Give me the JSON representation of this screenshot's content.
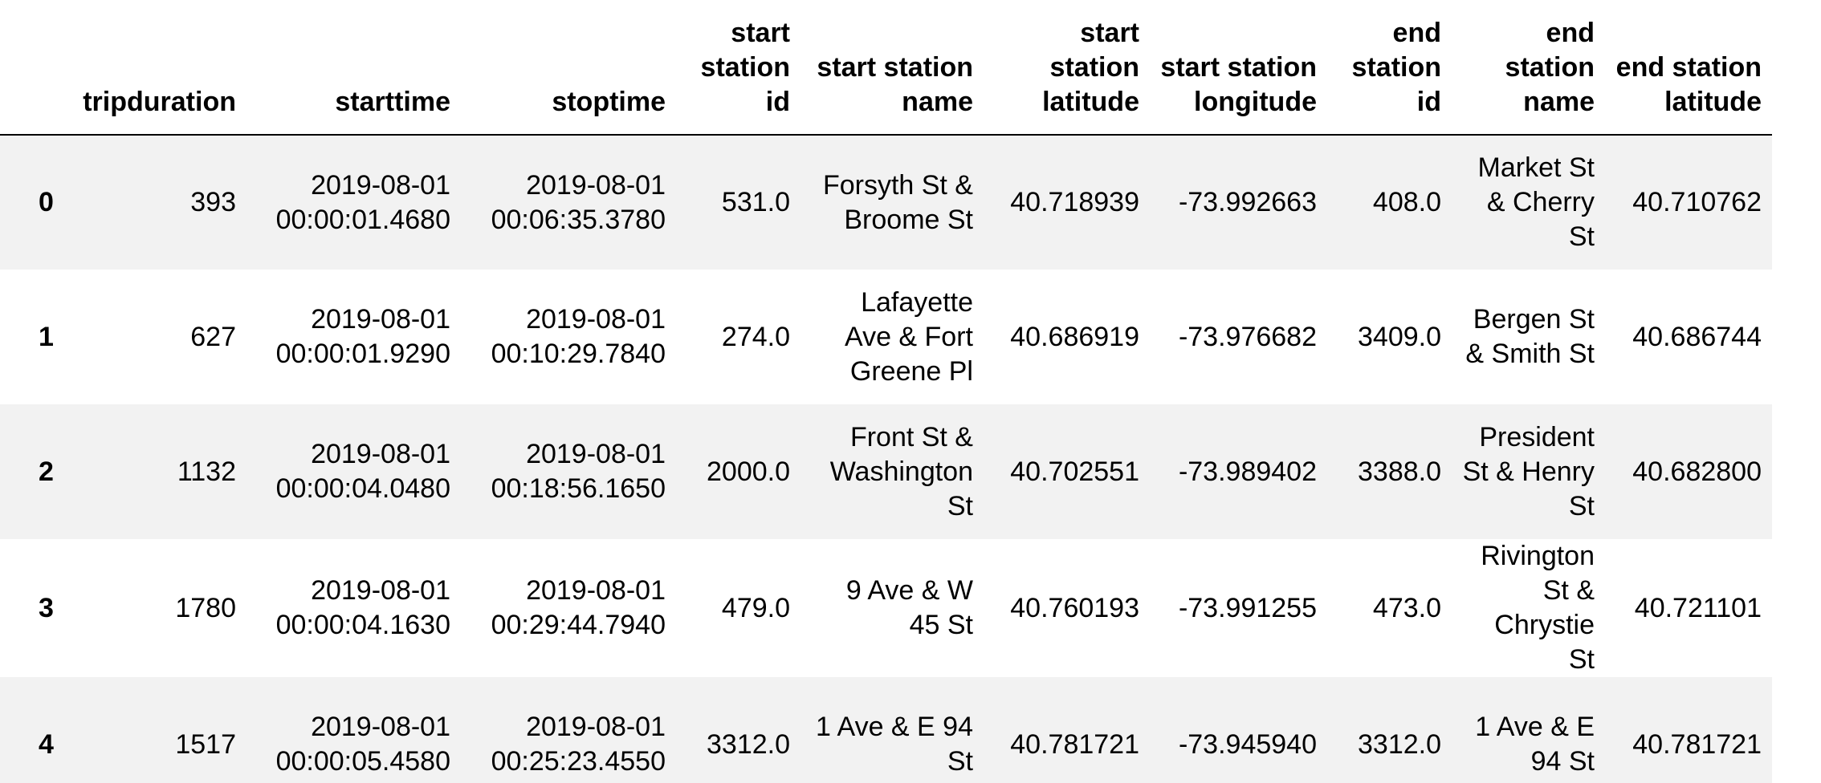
{
  "table": {
    "columns": [
      "tripduration",
      "starttime",
      "stoptime",
      "start station id",
      "start station name",
      "start station latitude",
      "start station longitude",
      "end station id",
      "end station name",
      "end station latitude"
    ],
    "rows": [
      {
        "index": "0",
        "cells": [
          "393",
          "2019-08-01 00:00:01.4680",
          "2019-08-01 00:06:35.3780",
          "531.0",
          "Forsyth St & Broome St",
          "40.718939",
          "-73.992663",
          "408.0",
          "Market St & Cherry St",
          "40.710762"
        ]
      },
      {
        "index": "1",
        "cells": [
          "627",
          "2019-08-01 00:00:01.9290",
          "2019-08-01 00:10:29.7840",
          "274.0",
          "Lafayette Ave & Fort Greene Pl",
          "40.686919",
          "-73.976682",
          "3409.0",
          "Bergen St & Smith St",
          "40.686744"
        ]
      },
      {
        "index": "2",
        "cells": [
          "1132",
          "2019-08-01 00:00:04.0480",
          "2019-08-01 00:18:56.1650",
          "2000.0",
          "Front St & Washington St",
          "40.702551",
          "-73.989402",
          "3388.0",
          "President St & Henry St",
          "40.682800"
        ]
      },
      {
        "index": "3",
        "cells": [
          "1780",
          "2019-08-01 00:00:04.1630",
          "2019-08-01 00:29:44.7940",
          "479.0",
          "9 Ave & W 45 St",
          "40.760193",
          "-73.991255",
          "473.0",
          "Rivington St & Chrystie St",
          "40.721101"
        ]
      },
      {
        "index": "4",
        "cells": [
          "1517",
          "2019-08-01 00:00:05.4580",
          "2019-08-01 00:25:23.4550",
          "3312.0",
          "1 Ave & E 94 St",
          "40.781721",
          "-73.945940",
          "3312.0",
          "1 Ave & E 94 St",
          "40.781721"
        ]
      }
    ]
  }
}
